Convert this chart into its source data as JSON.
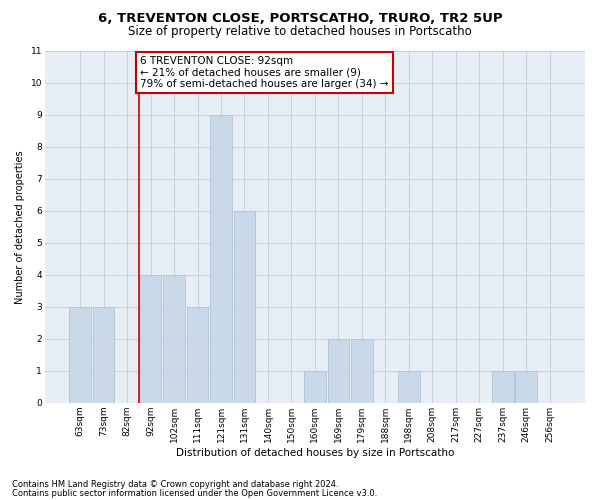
{
  "title1": "6, TREVENTON CLOSE, PORTSCATHO, TRURO, TR2 5UP",
  "title2": "Size of property relative to detached houses in Portscatho",
  "xlabel": "Distribution of detached houses by size in Portscatho",
  "ylabel": "Number of detached properties",
  "categories": [
    "63sqm",
    "73sqm",
    "82sqm",
    "92sqm",
    "102sqm",
    "111sqm",
    "121sqm",
    "131sqm",
    "140sqm",
    "150sqm",
    "160sqm",
    "169sqm",
    "179sqm",
    "188sqm",
    "198sqm",
    "208sqm",
    "217sqm",
    "227sqm",
    "237sqm",
    "246sqm",
    "256sqm"
  ],
  "values": [
    3,
    3,
    0,
    4,
    4,
    3,
    9,
    6,
    0,
    0,
    1,
    2,
    2,
    0,
    1,
    0,
    0,
    0,
    1,
    1,
    0
  ],
  "bar_color": "#c9d9ea",
  "bar_edge_color": "#a8bfce",
  "red_line_index": 3,
  "annotation_text": "6 TREVENTON CLOSE: 92sqm\n← 21% of detached houses are smaller (9)\n79% of semi-detached houses are larger (34) →",
  "annotation_box_color": "#ffffff",
  "annotation_box_edge": "#cc0000",
  "red_line_color": "#cc0000",
  "ylim": [
    0,
    11
  ],
  "yticks": [
    0,
    1,
    2,
    3,
    4,
    5,
    6,
    7,
    8,
    9,
    10,
    11
  ],
  "footer1": "Contains HM Land Registry data © Crown copyright and database right 2024.",
  "footer2": "Contains public sector information licensed under the Open Government Licence v3.0.",
  "bg_color": "#e8eef6",
  "grid_color": "#c8d0dc",
  "title1_fontsize": 9.5,
  "title2_fontsize": 8.5,
  "xlabel_fontsize": 7.5,
  "ylabel_fontsize": 7,
  "tick_fontsize": 6.5,
  "annotation_fontsize": 7.5,
  "footer_fontsize": 6
}
